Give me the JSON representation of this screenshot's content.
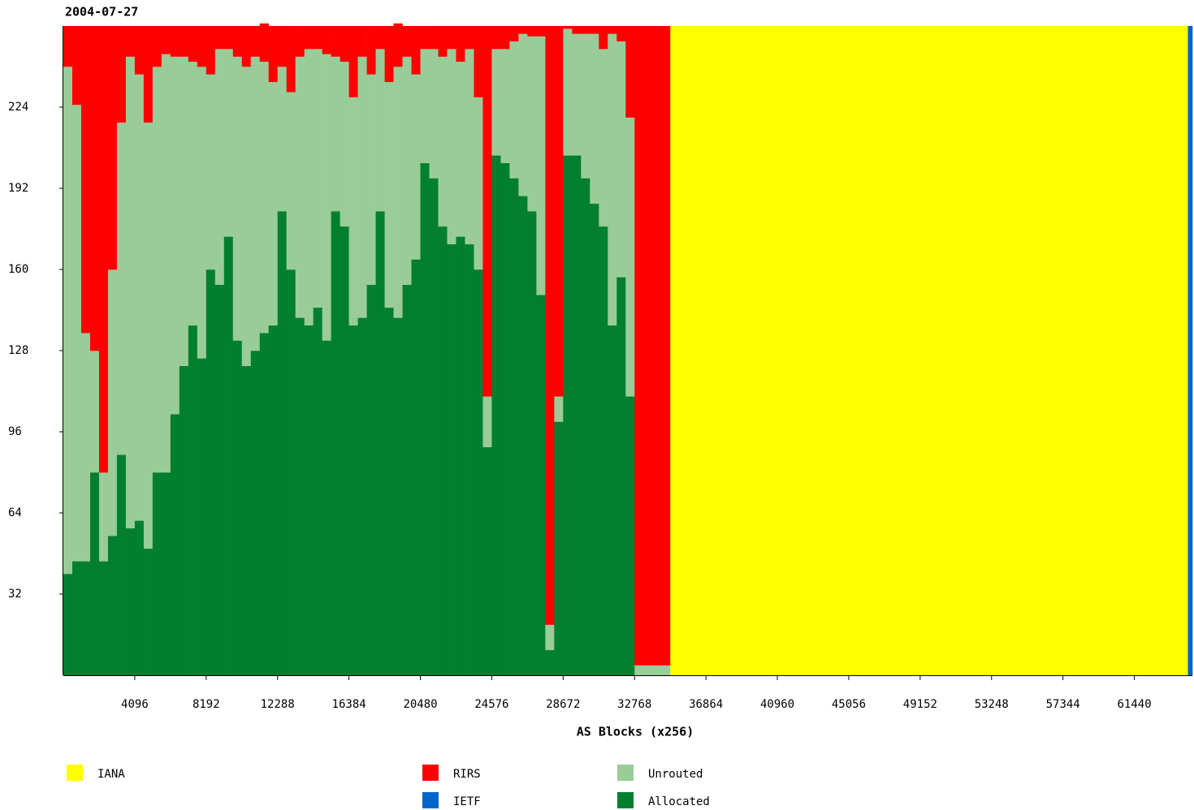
{
  "chart_data": {
    "type": "stacked-histogram",
    "title": "2004-07-27",
    "x_label": "AS Blocks (x256)",
    "bins": [
      0,
      512,
      1024,
      1536,
      2048,
      2560,
      3072,
      3584,
      4096,
      4608,
      5120,
      5632,
      6144,
      6656,
      7168,
      7680,
      8192,
      8704,
      9216,
      9728,
      10240,
      10752,
      11264,
      11776,
      12288,
      12800,
      13312,
      13824,
      14336,
      14848,
      15360,
      15872,
      16384,
      16896,
      17408,
      17920,
      18432,
      18944,
      19456,
      19968,
      20480,
      20992,
      21504,
      22016,
      22528,
      23040,
      23552,
      24064,
      24576,
      25088,
      25600,
      26112,
      26624,
      27136,
      27648,
      28160,
      28672,
      29184,
      29696,
      30208,
      30720,
      31232,
      31744,
      32256,
      32768,
      34816,
      64512,
      64768
    ],
    "xlim": [
      0,
      64768
    ],
    "xticks": [
      4096,
      8192,
      12288,
      16384,
      20480,
      24576,
      28672,
      32768,
      36864,
      40960,
      45056,
      49152,
      53248,
      57344,
      61440
    ],
    "ylim": [
      0,
      256
    ],
    "yticks": [
      32,
      64,
      96,
      128,
      160,
      192,
      224
    ],
    "series": [
      {
        "name": "IANA",
        "color": "#ffff00",
        "values": [
          0,
          0,
          0,
          0,
          0,
          0,
          0,
          0,
          0,
          0,
          0,
          0,
          0,
          0,
          0,
          0,
          0,
          0,
          0,
          0,
          0,
          0,
          0,
          0,
          0,
          0,
          0,
          0,
          0,
          0,
          0,
          0,
          0,
          0,
          0,
          0,
          0,
          0,
          0,
          0,
          0,
          0,
          0,
          0,
          0,
          0,
          0,
          0,
          0,
          0,
          0,
          0,
          0,
          0,
          0,
          0,
          0,
          0,
          0,
          0,
          0,
          0,
          0,
          0,
          0,
          256,
          0
        ]
      },
      {
        "name": "RIRS",
        "color": "#ff0000",
        "values": [
          16,
          31,
          121,
          128,
          176,
          96,
          38,
          12,
          19,
          38,
          16,
          11,
          12,
          12,
          14,
          16,
          19,
          9,
          9,
          12,
          16,
          12,
          15,
          22,
          16,
          26,
          12,
          9,
          9,
          11,
          12,
          14,
          28,
          12,
          19,
          9,
          22,
          17,
          12,
          19,
          9,
          9,
          12,
          9,
          14,
          9,
          28,
          146,
          9,
          9,
          6,
          3,
          4,
          4,
          236,
          146,
          1,
          3,
          3,
          3,
          9,
          3,
          6,
          36,
          252,
          0,
          0
        ]
      },
      {
        "name": "IETF",
        "color": "#0066cc",
        "values": [
          0,
          0,
          0,
          0,
          0,
          0,
          0,
          0,
          0,
          0,
          0,
          0,
          0,
          0,
          0,
          0,
          0,
          0,
          0,
          0,
          0,
          0,
          0,
          0,
          0,
          0,
          0,
          0,
          0,
          0,
          0,
          0,
          0,
          0,
          0,
          0,
          0,
          0,
          0,
          0,
          0,
          0,
          0,
          0,
          0,
          0,
          0,
          0,
          0,
          0,
          0,
          0,
          0,
          0,
          0,
          0,
          0,
          0,
          0,
          0,
          0,
          0,
          0,
          0,
          0,
          0,
          256
        ]
      },
      {
        "name": "Unrouted",
        "color": "#99cc99",
        "values": [
          200,
          180,
          90,
          48,
          35,
          105,
          131,
          186,
          176,
          168,
          160,
          165,
          141,
          122,
          104,
          115,
          77,
          93,
          74,
          112,
          118,
          116,
          107,
          96,
          57,
          70,
          103,
          109,
          102,
          113,
          61,
          65,
          90,
          103,
          83,
          64,
          89,
          99,
          90,
          73,
          45,
          51,
          67,
          77,
          69,
          77,
          68,
          20,
          42,
          45,
          54,
          64,
          69,
          102,
          10,
          10,
          50,
          48,
          57,
          67,
          70,
          115,
          93,
          110,
          4,
          0,
          0
        ]
      },
      {
        "name": "Allocated",
        "color": "#007f2f",
        "values": [
          40,
          45,
          45,
          80,
          45,
          55,
          87,
          58,
          61,
          50,
          80,
          80,
          103,
          122,
          138,
          125,
          160,
          154,
          173,
          132,
          122,
          128,
          135,
          138,
          183,
          160,
          141,
          138,
          145,
          132,
          183,
          177,
          138,
          141,
          154,
          183,
          145,
          141,
          154,
          164,
          202,
          196,
          177,
          170,
          173,
          170,
          160,
          90,
          205,
          202,
          196,
          189,
          183,
          150,
          10,
          100,
          205,
          205,
          196,
          186,
          177,
          138,
          157,
          110,
          0,
          0,
          0
        ]
      }
    ]
  }
}
